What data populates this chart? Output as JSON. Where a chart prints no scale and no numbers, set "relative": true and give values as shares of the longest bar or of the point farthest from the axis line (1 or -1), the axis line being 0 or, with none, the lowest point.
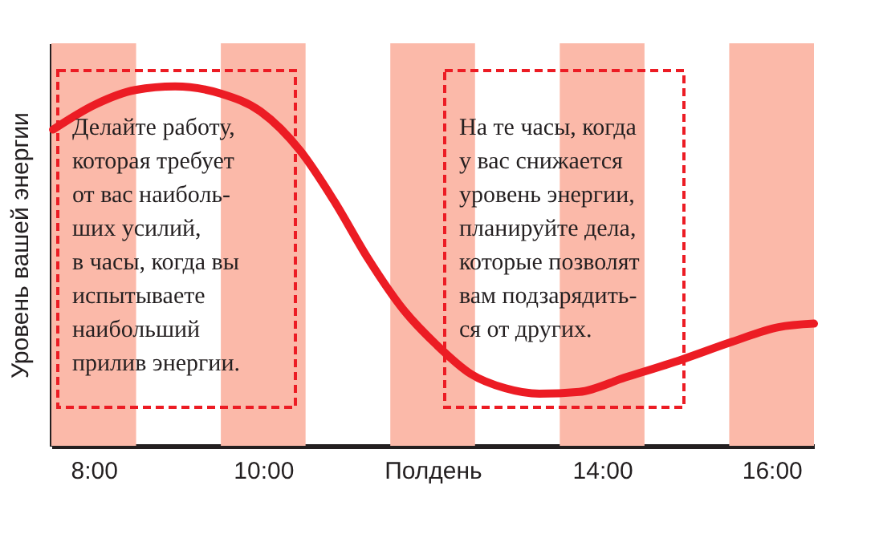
{
  "chart_data": {
    "type": "line",
    "relative": true,
    "ylabel": "Уровень вашей энергии",
    "xlim": [
      7.5,
      16.5
    ],
    "xticks": [
      {
        "value": 8,
        "label": "8:00"
      },
      {
        "value": 10,
        "label": "10:00"
      },
      {
        "value": 12,
        "label": "Полдень"
      },
      {
        "value": 14,
        "label": "14:00"
      },
      {
        "value": 16,
        "label": "16:00"
      }
    ],
    "series": [
      {
        "color": "#ec1c24",
        "line_style": "solid",
        "marker": "none",
        "x": [
          7.52,
          8.02,
          8.49,
          8.96,
          9.5,
          9.97,
          10.44,
          10.84,
          11.24,
          11.65,
          12.05,
          12.45,
          12.86,
          13.26,
          13.73,
          14.27,
          14.94,
          15.54,
          16.08,
          16.5
        ],
        "values": [
          0.88,
          0.95,
          0.99,
          1.0,
          0.98,
          0.93,
          0.82,
          0.68,
          0.52,
          0.38,
          0.28,
          0.2,
          0.16,
          0.145,
          0.15,
          0.19,
          0.24,
          0.29,
          0.33,
          0.34
        ]
      }
    ],
    "bands": [
      {
        "axis": "x",
        "from": 7.5,
        "to": 8.5,
        "color": "#fbb9a9"
      },
      {
        "axis": "x",
        "from": 9.5,
        "to": 10.5,
        "color": "#fbb9a9"
      },
      {
        "axis": "x",
        "from": 11.5,
        "to": 12.5,
        "color": "#fbb9a9"
      },
      {
        "axis": "x",
        "from": 13.5,
        "to": 14.5,
        "color": "#fbb9a9"
      },
      {
        "axis": "x",
        "from": 15.5,
        "to": 16.5,
        "color": "#fbb9a9"
      }
    ],
    "annotations": [
      "Делайте работу,\nкоторая требует\nот вас наиболь-\nших усилий,\nв часы, когда вы\nиспытываете\nнаибольший\nприлив энергии.",
      "На те часы, когда\nу вас снижается\nуровень энергии,\nпланируйте дела,\nкоторые позволят\nвам подзарядить-\nся от других."
    ],
    "grid": false
  }
}
